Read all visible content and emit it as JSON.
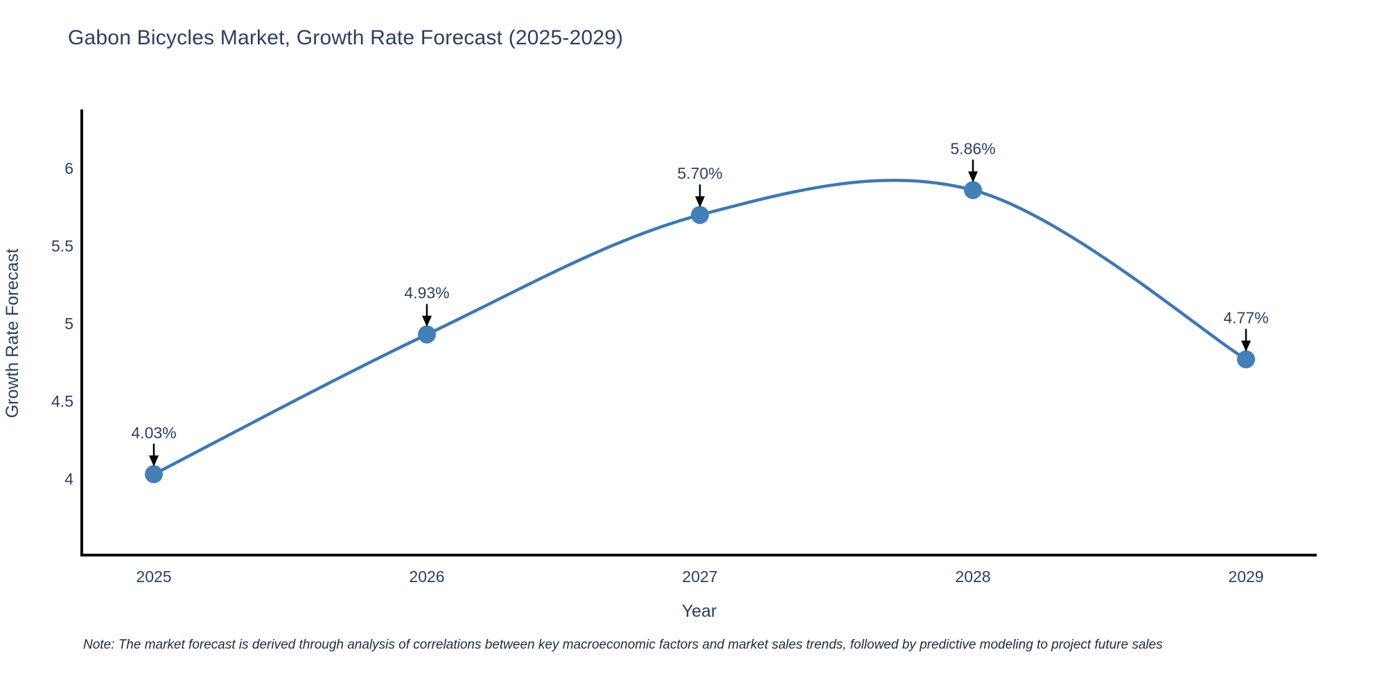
{
  "title": "Gabon Bicycles Market, Growth Rate Forecast (2025-2029)",
  "note": "Note: The market forecast is derived through analysis of correlations between key macroeconomic factors and market sales trends, followed by predictive modeling to project future sales",
  "chart_data": {
    "type": "line",
    "title": "Gabon Bicycles Market, Growth Rate Forecast (2025-2029)",
    "x": [
      2025,
      2026,
      2027,
      2028,
      2029
    ],
    "xticklabels": [
      "2025",
      "2026",
      "2027",
      "2028",
      "2029"
    ],
    "series": [
      {
        "name": "Growth Rate Forecast",
        "values": [
          4.03,
          4.93,
          5.7,
          5.86,
          4.77
        ]
      }
    ],
    "point_labels": [
      "4.03%",
      "4.93%",
      "5.70%",
      "5.86%",
      "4.77%"
    ],
    "xlabel": "Year",
    "ylabel": "Growth Rate Forecast",
    "yticks": [
      4,
      4.5,
      5,
      5.5,
      6
    ],
    "ylim": [
      3.5,
      6.35
    ],
    "line_shape": "spline",
    "grid": false,
    "legend": "none",
    "colors": {
      "line": "#3f78b0",
      "marker": "#4380b8",
      "axis": "#000000",
      "text": "#2a3f5f",
      "arrow": "#000000"
    }
  }
}
